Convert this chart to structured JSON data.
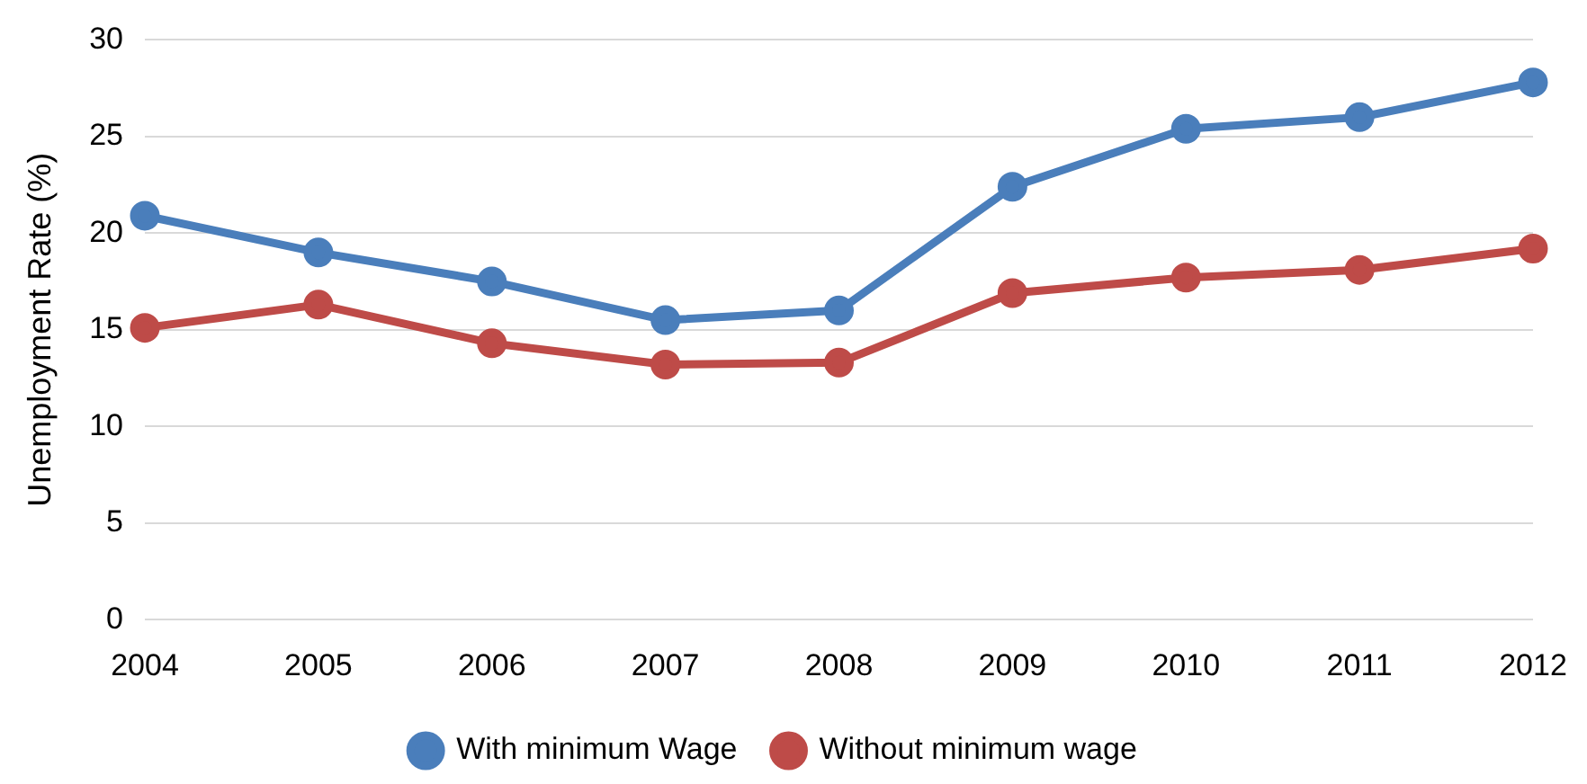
{
  "chart_data": {
    "type": "line",
    "ylabel": "Unemployment Rate (%)",
    "categories": [
      "2004",
      "2005",
      "2006",
      "2007",
      "2008",
      "2009",
      "2010",
      "2011",
      "2012"
    ],
    "series": [
      {
        "name": "With minimum Wage",
        "color": "#4a7ebb",
        "values": [
          20.9,
          19.0,
          17.5,
          15.5,
          16.0,
          22.4,
          25.4,
          26.0,
          27.8
        ]
      },
      {
        "name": "Without minimum wage",
        "color": "#be4b48",
        "values": [
          15.1,
          16.3,
          14.3,
          13.2,
          13.3,
          16.9,
          17.7,
          18.1,
          19.2
        ]
      }
    ],
    "ylim": [
      0,
      30
    ],
    "yticks": [
      0,
      5,
      10,
      15,
      20,
      25,
      30
    ],
    "grid": "y",
    "legend": "bottom",
    "marker": "circle",
    "line_style": "solid"
  }
}
